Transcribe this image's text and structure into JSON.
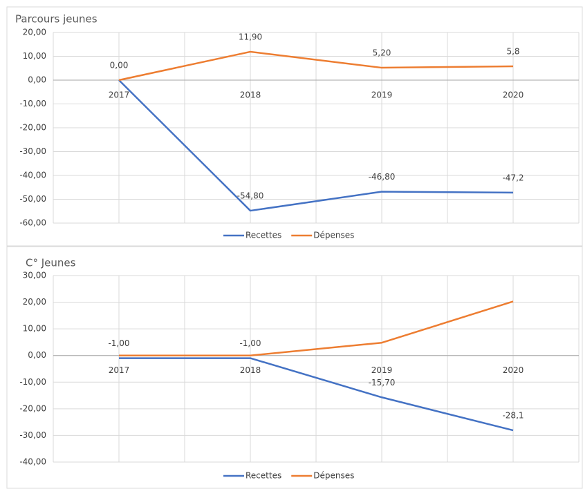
{
  "chart_data": [
    {
      "type": "line",
      "title": "Parcours jeunes",
      "categories": [
        "2017",
        "2018",
        "2019",
        "2020"
      ],
      "series": [
        {
          "name": "Recettes",
          "color": "#4472c4",
          "values": [
            0,
            -54.8,
            -46.8,
            -47.2
          ],
          "value_labels": [
            null,
            "-54,80",
            "-46,80",
            "-47,2"
          ]
        },
        {
          "name": "Dépenses",
          "color": "#ed7d31",
          "values": [
            0,
            11.9,
            5.2,
            5.8
          ],
          "value_labels": [
            "0,00",
            "11,90",
            "5,20",
            "5,8"
          ]
        }
      ],
      "ylim": [
        -60,
        20
      ],
      "yticks": [
        {
          "value": 20,
          "label": "20,00"
        },
        {
          "value": 10,
          "label": "10,00"
        },
        {
          "value": 0,
          "label": "0,00"
        },
        {
          "value": -10,
          "label": "-10,00"
        },
        {
          "value": -20,
          "label": "-20,00"
        },
        {
          "value": -30,
          "label": "-30,00"
        },
        {
          "value": -40,
          "label": "-40,00"
        },
        {
          "value": -50,
          "label": "-50,00"
        },
        {
          "value": -60,
          "label": "-60,00"
        }
      ],
      "grid": true,
      "legend": "bottom"
    },
    {
      "type": "line",
      "title": "C° Jeunes",
      "categories": [
        "2017",
        "2018",
        "2019",
        "2020"
      ],
      "series": [
        {
          "name": "Recettes",
          "color": "#4472c4",
          "values": [
            -1,
            -1,
            -15.7,
            -28.1
          ],
          "value_labels": [
            "-1,00",
            "-1,00",
            "-15,70",
            "-28,1"
          ]
        },
        {
          "name": "Dépenses",
          "color": "#ed7d31",
          "values": [
            0,
            0,
            4.8,
            20.3
          ]
        }
      ],
      "ylim": [
        -40,
        30
      ],
      "yticks": [
        {
          "value": 30,
          "label": "30,00"
        },
        {
          "value": 20,
          "label": "20,00"
        },
        {
          "value": 10,
          "label": "10,00"
        },
        {
          "value": 0,
          "label": "0,00"
        },
        {
          "value": -10,
          "label": "-10,00"
        },
        {
          "value": -20,
          "label": "-20,00"
        },
        {
          "value": -30,
          "label": "-30,00"
        },
        {
          "value": -40,
          "label": "-40,00"
        }
      ],
      "grid": true,
      "legend": "bottom"
    }
  ]
}
